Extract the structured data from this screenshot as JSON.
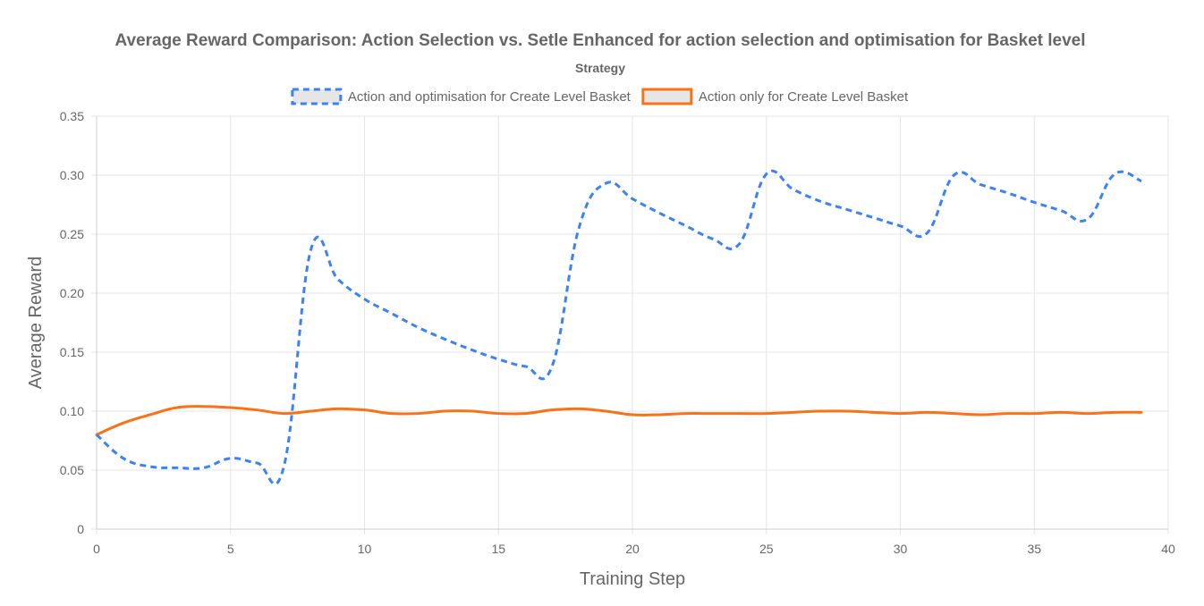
{
  "chart_data": {
    "type": "line",
    "title": "Average Reward Comparison: Action Selection vs. Setle Enhanced for action selection and optimisation for Basket level",
    "legend_title": "Strategy",
    "legend_position": "top",
    "xlabel": "Training Step",
    "ylabel": "Average Reward",
    "xlim": [
      0,
      40
    ],
    "ylim": [
      0,
      0.35
    ],
    "grid": true,
    "x_ticks": [
      "0",
      "5",
      "10",
      "15",
      "20",
      "25",
      "30",
      "35",
      "40"
    ],
    "y_ticks": [
      "0",
      "0.05",
      "0.10",
      "0.15",
      "0.20",
      "0.25",
      "0.30",
      "0.35"
    ],
    "series": [
      {
        "name": "Action and optimisation for Create Level Basket",
        "color": "#3b82f6",
        "dash": true,
        "x": [
          0,
          1,
          2,
          3,
          4,
          5,
          6,
          7,
          8,
          9,
          10,
          11,
          12,
          13,
          14,
          15,
          16,
          17,
          18,
          19,
          20,
          21,
          22,
          23,
          24,
          25,
          26,
          27,
          28,
          29,
          30,
          31,
          32,
          33,
          34,
          35,
          36,
          37,
          38,
          39
        ],
        "values": [
          0.08,
          0.06,
          0.053,
          0.052,
          0.052,
          0.06,
          0.056,
          0.054,
          0.237,
          0.212,
          0.195,
          0.183,
          0.171,
          0.161,
          0.152,
          0.144,
          0.138,
          0.138,
          0.255,
          0.293,
          0.28,
          0.268,
          0.257,
          0.246,
          0.242,
          0.301,
          0.288,
          0.278,
          0.271,
          0.264,
          0.257,
          0.251,
          0.3,
          0.292,
          0.285,
          0.277,
          0.27,
          0.263,
          0.301,
          0.295
        ]
      },
      {
        "name": "Action only for Create Level Basket",
        "color": "#f97316",
        "dash": false,
        "x": [
          0,
          1,
          2,
          3,
          4,
          5,
          6,
          7,
          8,
          9,
          10,
          11,
          12,
          13,
          14,
          15,
          16,
          17,
          18,
          19,
          20,
          21,
          22,
          23,
          24,
          25,
          26,
          27,
          28,
          29,
          30,
          31,
          32,
          33,
          34,
          35,
          36,
          37,
          38,
          39
        ],
        "values": [
          0.08,
          0.09,
          0.097,
          0.103,
          0.104,
          0.103,
          0.101,
          0.098,
          0.1,
          0.102,
          0.101,
          0.098,
          0.098,
          0.1,
          0.1,
          0.098,
          0.098,
          0.101,
          0.102,
          0.1,
          0.097,
          0.097,
          0.098,
          0.098,
          0.098,
          0.098,
          0.099,
          0.1,
          0.1,
          0.099,
          0.098,
          0.099,
          0.098,
          0.097,
          0.098,
          0.098,
          0.099,
          0.098,
          0.099,
          0.099
        ]
      }
    ]
  }
}
